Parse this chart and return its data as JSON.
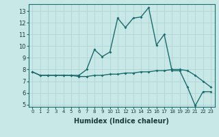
{
  "title": "",
  "xlabel": "Humidex (Indice chaleur)",
  "background_color": "#c8e8e8",
  "grid_color": "#b0d4d4",
  "line_color": "#1a6b6b",
  "xlim": [
    -0.5,
    23.5
  ],
  "ylim": [
    4.8,
    13.6
  ],
  "yticks": [
    5,
    6,
    7,
    8,
    9,
    10,
    11,
    12,
    13
  ],
  "xticks": [
    0,
    1,
    2,
    3,
    4,
    5,
    6,
    7,
    8,
    9,
    10,
    11,
    12,
    13,
    14,
    15,
    16,
    17,
    18,
    19,
    20,
    21,
    22,
    23
  ],
  "line1_x": [
    0,
    1,
    2,
    3,
    4,
    5,
    6,
    7,
    8,
    9,
    10,
    11,
    12,
    13,
    14,
    15,
    16,
    17,
    18,
    19,
    20,
    21,
    22,
    23
  ],
  "line1_y": [
    7.8,
    7.5,
    7.5,
    7.5,
    7.5,
    7.5,
    7.5,
    8.0,
    9.7,
    9.1,
    9.5,
    12.4,
    11.6,
    12.4,
    12.5,
    13.3,
    10.1,
    11.0,
    7.9,
    7.9,
    6.5,
    4.9,
    6.1,
    6.1
  ],
  "line2_x": [
    0,
    1,
    2,
    3,
    4,
    5,
    6,
    7,
    8,
    9,
    10,
    11,
    12,
    13,
    14,
    15,
    16,
    17,
    18,
    19,
    20,
    21,
    22,
    23
  ],
  "line2_y": [
    7.8,
    7.5,
    7.5,
    7.5,
    7.5,
    7.5,
    7.4,
    7.4,
    7.5,
    7.5,
    7.6,
    7.6,
    7.7,
    7.7,
    7.8,
    7.8,
    7.9,
    7.9,
    8.0,
    8.0,
    7.9,
    7.5,
    7.0,
    6.5
  ],
  "xlabel_fontsize": 7,
  "tick_fontsize_x": 5,
  "tick_fontsize_y": 6
}
